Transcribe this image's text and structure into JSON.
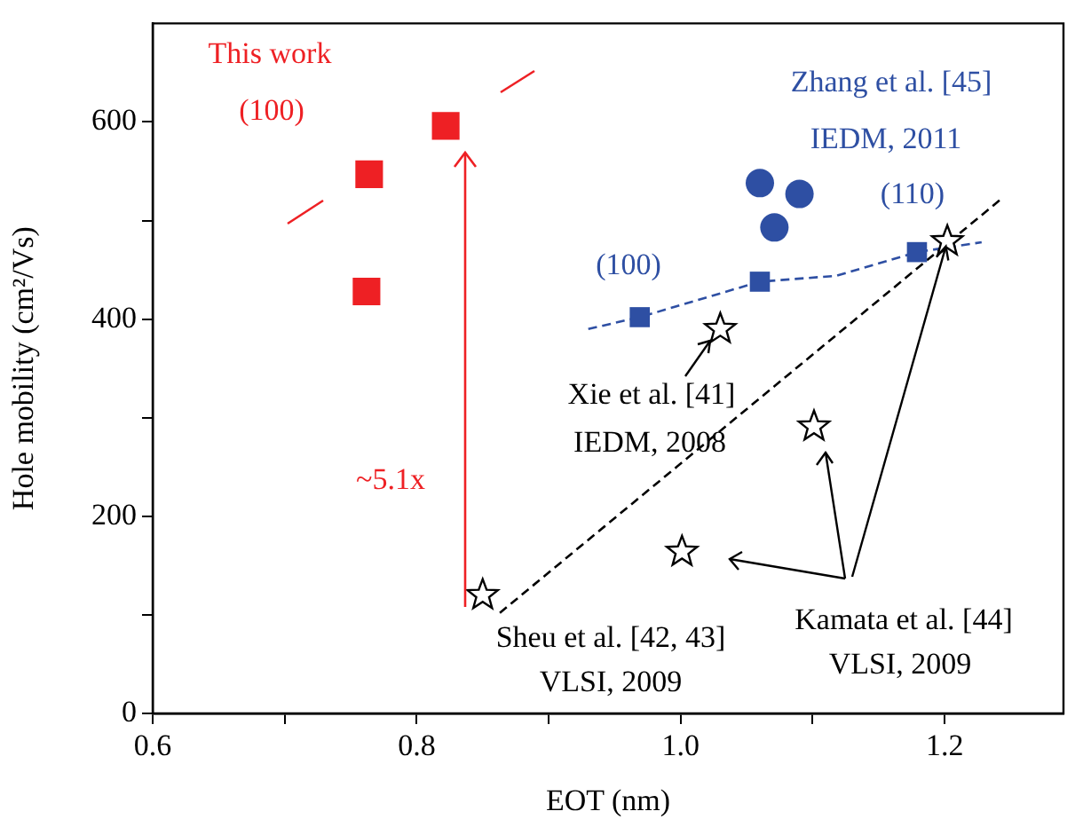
{
  "chart_data": {
    "type": "scatter",
    "xlabel": "EOT (nm)",
    "ylabel": "Hole mobility (cm²/Vs)",
    "xlim": [
      0.6,
      1.29
    ],
    "xticks": [
      0.6,
      {
        "value": 0.7,
        "label": null
      },
      0.8,
      {
        "value": 0.9,
        "label": null
      },
      "1.0",
      {
        "value": 1.1,
        "label": null
      },
      1.2
    ],
    "ylim": [
      0,
      700
    ],
    "yticks": [
      0,
      {
        "value": 100,
        "label": null
      },
      200,
      {
        "value": 300,
        "label": null
      },
      400,
      {
        "value": 500,
        "label": null
      },
      600
    ],
    "grid": false,
    "legend": false,
    "series": [
      {
        "type": "scatter",
        "marker": "square",
        "color": "#ee2024",
        "x": [
          0.764,
          0.822,
          0.762
        ],
        "values": [
          547,
          596,
          428
        ]
      },
      {
        "type": "scatter",
        "marker": "square",
        "color": "#2e4fa3",
        "x": [
          0.969,
          1.06,
          1.179
        ],
        "values": [
          402,
          438,
          468
        ]
      },
      {
        "type": "scatter",
        "marker": "circle",
        "color": "#2e4fa3",
        "x": [
          1.06,
          1.09,
          1.071
        ],
        "values": [
          538,
          527,
          493
        ]
      },
      {
        "type": "scatter",
        "marker": "star",
        "color": "#000000",
        "x": [
          1.03,
          1.202,
          1.101,
          1.001,
          0.85
        ],
        "values": [
          390,
          479,
          291,
          164,
          120
        ]
      },
      {
        "type": "line",
        "marker": "none",
        "line_style": "dashed",
        "color": "#2e4fa3",
        "x": [
          0.93,
          0.969,
          1.06,
          1.118,
          1.179,
          1.228
        ],
        "values": [
          390,
          402,
          438,
          444,
          468,
          478
        ]
      },
      {
        "type": "line",
        "marker": "none",
        "line_style": "dashed",
        "color": "#000000",
        "x": [
          0.863,
          1.242
        ],
        "values": [
          102,
          521
        ]
      }
    ],
    "annotations": [
      "This work",
      "(100)",
      "Zhang et al. [45]",
      "IEDM, 2011",
      "(110)",
      "(100)",
      "Xie et al. [41]",
      "IEDM, 2008",
      "~5.1x",
      "Sheu et al. [42, 43]",
      "VLSI, 2009",
      {
        "text": "Kamata et al. [44]",
        "x": 1.202,
        "y": 479
      },
      "VLSI, 2009"
    ]
  }
}
